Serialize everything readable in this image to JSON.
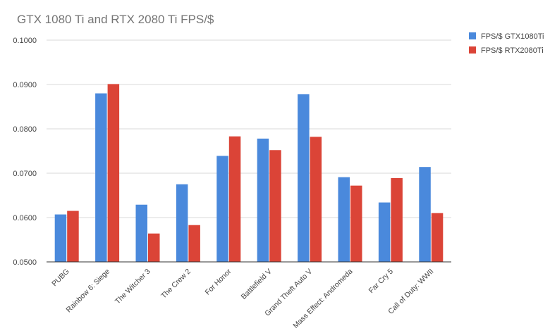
{
  "chart_data": {
    "type": "bar",
    "title": "GTX 1080 Ti and RTX 2080 Ti FPS/$",
    "xlabel": "",
    "ylabel": "",
    "ylim": [
      0.05,
      0.1
    ],
    "yticks": [
      "0.0500",
      "0.0600",
      "0.0700",
      "0.0800",
      "0.0900",
      "0.1000"
    ],
    "ytick_values": [
      0.05,
      0.06,
      0.07,
      0.08,
      0.09,
      0.1
    ],
    "grid": true,
    "legend_position": "top-right",
    "categories": [
      "PUBG",
      "Rainbow 6: Siege",
      "The Witcher 3",
      "The Crew 2",
      "For Honor",
      "Battlefield V",
      "Grand Theft Auto V",
      "Mass Effect: Andromeda",
      "Far Cry 5",
      "Call of Duty: WWII"
    ],
    "series": [
      {
        "name": "FPS/$ GTX1080Ti",
        "color": "#4a89dc",
        "values": [
          0.0607,
          0.088,
          0.0629,
          0.0675,
          0.0739,
          0.0778,
          0.0878,
          0.0691,
          0.0634,
          0.0714
        ]
      },
      {
        "name": "FPS/$ RTX2080Ti",
        "color": "#db4437",
        "values": [
          0.0615,
          0.0901,
          0.0564,
          0.0583,
          0.0783,
          0.0752,
          0.0782,
          0.0672,
          0.0689,
          0.061
        ]
      }
    ]
  }
}
